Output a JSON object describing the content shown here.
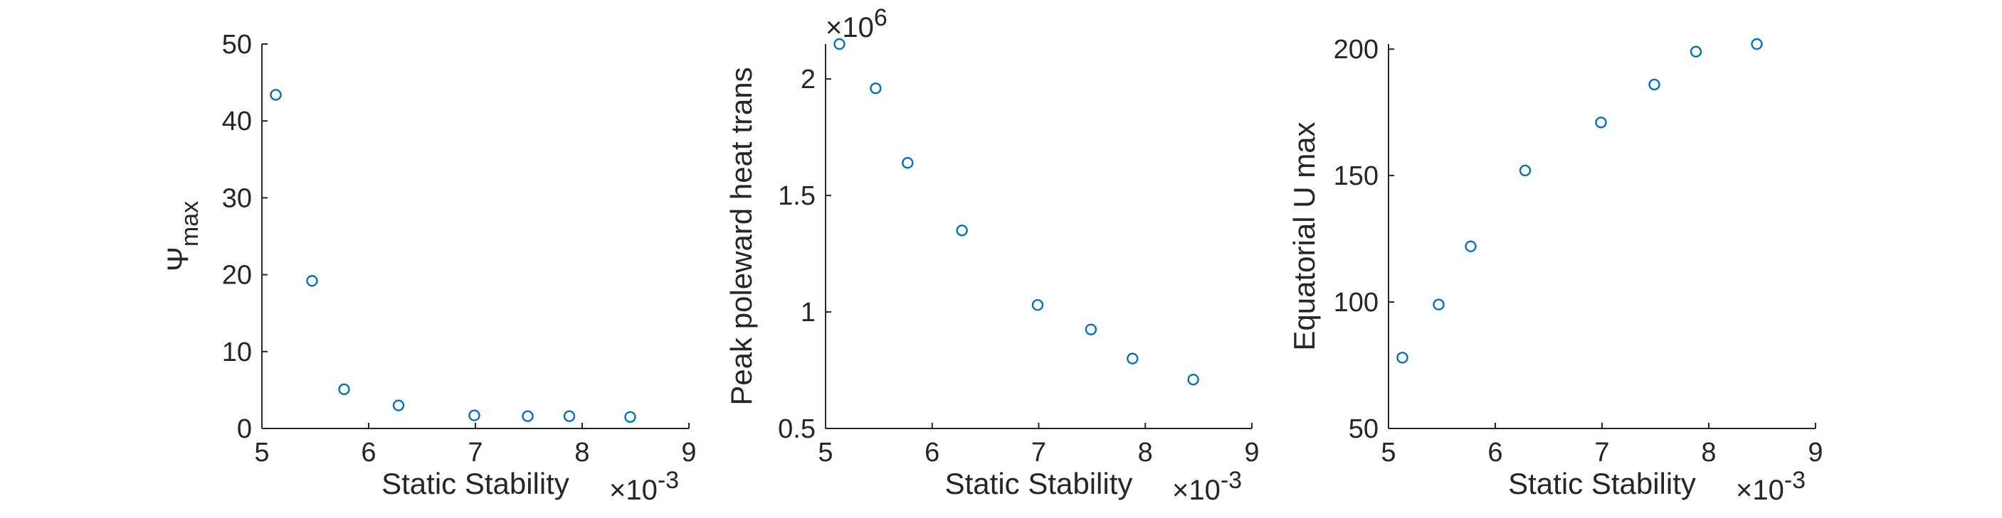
{
  "chart_data": [
    {
      "type": "scatter",
      "xlabel": "Static Stability",
      "ylabel_base": "Ψ",
      "ylabel_sub": "max",
      "x_exponent_label": "×10",
      "x_exponent": "-3",
      "xlim": [
        5,
        9
      ],
      "ylim": [
        0,
        50
      ],
      "xticks": [
        5,
        6,
        7,
        8,
        9
      ],
      "yticks": [
        0,
        10,
        20,
        30,
        40,
        50
      ],
      "marker_color": "#0072BD",
      "series": [
        {
          "x": [
            5.13,
            5.47,
            5.77,
            6.28,
            6.99,
            7.49,
            7.88,
            8.45
          ],
          "y": [
            43.4,
            19.2,
            5.1,
            3.0,
            1.7,
            1.6,
            1.6,
            1.5
          ]
        }
      ]
    },
    {
      "type": "scatter",
      "xlabel": "Static Stability",
      "ylabel": "Peak poleward heat trans",
      "x_exponent_label": "×10",
      "x_exponent": "-3",
      "y_exponent_label": "×10",
      "y_exponent": "6",
      "xlim": [
        5,
        9
      ],
      "ylim": [
        0.5,
        2.15
      ],
      "xticks": [
        5,
        6,
        7,
        8,
        9
      ],
      "yticks": [
        0.5,
        1,
        1.5,
        2
      ],
      "marker_color": "#0072BD",
      "series": [
        {
          "x": [
            5.13,
            5.47,
            5.77,
            6.28,
            6.99,
            7.49,
            7.88,
            8.45
          ],
          "y": [
            2.15,
            1.96,
            1.64,
            1.35,
            1.03,
            0.925,
            0.8,
            0.71
          ]
        }
      ]
    },
    {
      "type": "scatter",
      "xlabel": "Static Stability",
      "ylabel": "Equatorial U max",
      "x_exponent_label": "×10",
      "x_exponent": "-3",
      "xlim": [
        5,
        9
      ],
      "ylim": [
        50,
        202
      ],
      "xticks": [
        5,
        6,
        7,
        8,
        9
      ],
      "yticks": [
        50,
        100,
        150,
        200
      ],
      "marker_color": "#0072BD",
      "series": [
        {
          "x": [
            5.13,
            5.47,
            5.77,
            6.28,
            6.99,
            7.49,
            7.88,
            8.45
          ],
          "y": [
            78,
            99,
            122,
            152,
            171,
            186,
            199,
            202
          ]
        }
      ]
    }
  ]
}
